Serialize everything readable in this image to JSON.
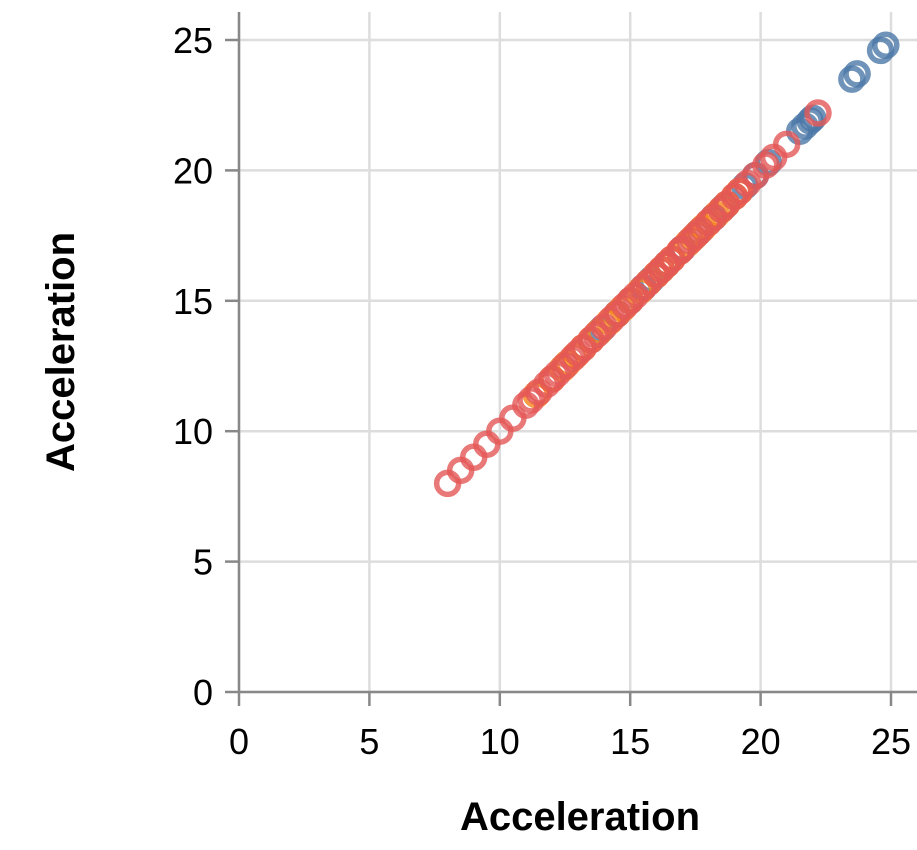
{
  "chart_data": {
    "type": "scatter",
    "xlabel": "Acceleration",
    "ylabel": "Acceleration",
    "xlim": [
      0,
      25
    ],
    "ylim": [
      0,
      25
    ],
    "x_ticks": [
      "0",
      "5",
      "10",
      "15",
      "20",
      "25"
    ],
    "y_ticks": [
      "0",
      "5",
      "10",
      "15",
      "20",
      "25"
    ],
    "grid": true,
    "series": [
      {
        "color": "#4c78a8",
        "values": [
          [
            13.9,
            13.9
          ],
          [
            14.5,
            14.5
          ],
          [
            15.0,
            15.0
          ],
          [
            15.5,
            15.5
          ],
          [
            15.8,
            15.8
          ],
          [
            16.4,
            16.4
          ],
          [
            17.0,
            17.0
          ],
          [
            17.6,
            17.6
          ],
          [
            18.2,
            18.2
          ],
          [
            18.6,
            18.6
          ],
          [
            19.4,
            19.4
          ],
          [
            19.8,
            19.8
          ],
          [
            20.3,
            20.3
          ],
          [
            21.5,
            21.5
          ],
          [
            21.7,
            21.7
          ],
          [
            21.9,
            21.9
          ],
          [
            22.0,
            22.0
          ],
          [
            23.5,
            23.5
          ],
          [
            23.7,
            23.7
          ],
          [
            24.6,
            24.6
          ],
          [
            24.8,
            24.8
          ]
        ]
      },
      {
        "color": "#f58518",
        "values": [
          [
            11.4,
            11.4
          ],
          [
            12.0,
            12.0
          ],
          [
            12.4,
            12.4
          ],
          [
            12.6,
            12.6
          ],
          [
            12.9,
            12.9
          ],
          [
            13.2,
            13.2
          ],
          [
            13.5,
            13.5
          ],
          [
            13.8,
            13.8
          ],
          [
            14.2,
            14.2
          ],
          [
            14.5,
            14.5
          ],
          [
            14.7,
            14.7
          ],
          [
            15.0,
            15.0
          ],
          [
            15.4,
            15.4
          ],
          [
            15.7,
            15.7
          ],
          [
            16.0,
            16.0
          ],
          [
            16.2,
            16.2
          ],
          [
            16.4,
            16.4
          ],
          [
            16.6,
            16.6
          ],
          [
            16.9,
            16.9
          ],
          [
            17.2,
            17.2
          ],
          [
            17.4,
            17.4
          ],
          [
            17.6,
            17.6
          ],
          [
            17.8,
            17.8
          ],
          [
            18.0,
            18.0
          ],
          [
            18.3,
            18.3
          ],
          [
            18.5,
            18.5
          ],
          [
            18.7,
            18.7
          ],
          [
            19.0,
            19.0
          ],
          [
            19.2,
            19.2
          ]
        ]
      },
      {
        "color": "#e45756",
        "values": [
          [
            8.0,
            8.0
          ],
          [
            8.5,
            8.5
          ],
          [
            9.0,
            9.0
          ],
          [
            9.5,
            9.5
          ],
          [
            10.0,
            10.0
          ],
          [
            10.5,
            10.5
          ],
          [
            11.0,
            11.0
          ],
          [
            11.2,
            11.2
          ],
          [
            11.5,
            11.5
          ],
          [
            11.8,
            11.8
          ],
          [
            12.0,
            12.0
          ],
          [
            12.2,
            12.2
          ],
          [
            12.5,
            12.5
          ],
          [
            12.8,
            12.8
          ],
          [
            13.0,
            13.0
          ],
          [
            13.2,
            13.2
          ],
          [
            13.5,
            13.5
          ],
          [
            13.7,
            13.7
          ],
          [
            14.0,
            14.0
          ],
          [
            14.3,
            14.3
          ],
          [
            14.5,
            14.5
          ],
          [
            14.8,
            14.8
          ],
          [
            15.0,
            15.0
          ],
          [
            15.2,
            15.2
          ],
          [
            15.5,
            15.5
          ],
          [
            15.7,
            15.7
          ],
          [
            16.0,
            16.0
          ],
          [
            16.2,
            16.2
          ],
          [
            16.4,
            16.4
          ],
          [
            16.6,
            16.6
          ],
          [
            16.9,
            16.9
          ],
          [
            17.0,
            17.0
          ],
          [
            17.3,
            17.3
          ],
          [
            17.5,
            17.5
          ],
          [
            17.7,
            17.7
          ],
          [
            18.0,
            18.0
          ],
          [
            18.2,
            18.2
          ],
          [
            18.5,
            18.5
          ],
          [
            18.7,
            18.7
          ],
          [
            19.0,
            19.0
          ],
          [
            19.2,
            19.2
          ],
          [
            19.5,
            19.5
          ],
          [
            19.8,
            19.8
          ],
          [
            20.2,
            20.2
          ],
          [
            20.5,
            20.5
          ],
          [
            21.0,
            21.0
          ],
          [
            22.2,
            22.2
          ]
        ]
      }
    ]
  }
}
